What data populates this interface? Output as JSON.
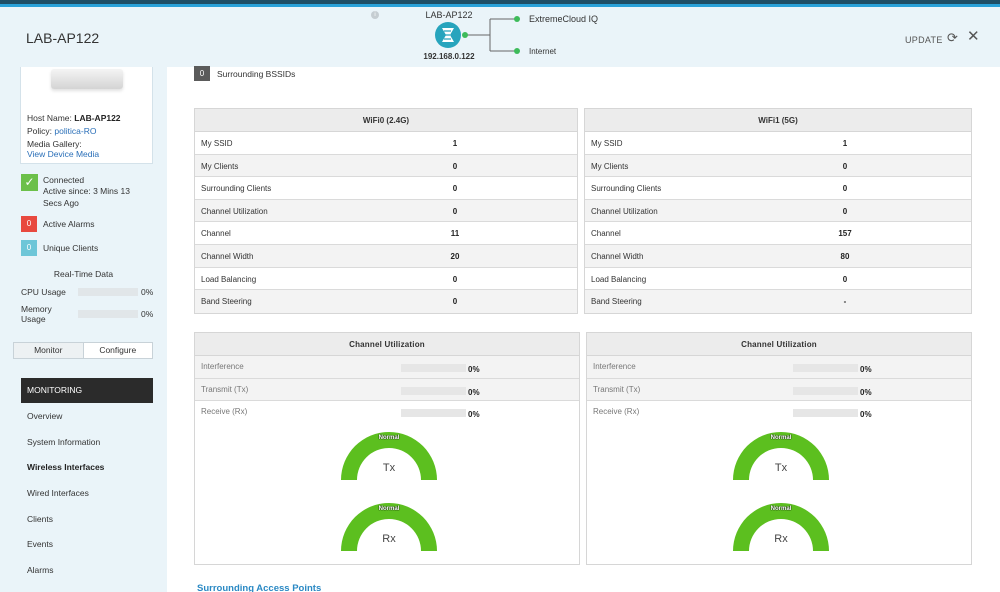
{
  "header": {
    "title": "LAB-AP122",
    "update_label": "UPDATE",
    "topology": {
      "device_name": "LAB-AP122",
      "device_ip": "192.168.0.122",
      "link1": "ExtremeCloud IQ",
      "link2": "Internet",
      "status_color": "#3dbb5a"
    }
  },
  "sidebar": {
    "host_label": "Host Name:",
    "host_value": "LAB-AP122",
    "policy_label": "Policy:",
    "policy_value": "politica-RO",
    "media_label": "Media Gallery:",
    "media_link": "View Device Media",
    "connected_title": "Connected",
    "connected_since_1": "Active since: 3 Mins 13",
    "connected_since_2": "Secs Ago",
    "alarms_count": "0",
    "alarms_label": "Active Alarms",
    "clients_count": "0",
    "clients_label": "Unique Clients",
    "realtime_title": "Real-Time Data",
    "cpu_label": "CPU Usage",
    "cpu_value": "0%",
    "mem_label_1": "Memory",
    "mem_label_2": "Usage",
    "mem_value": "0%",
    "tab_monitor": "Monitor",
    "tab_configure": "Configure",
    "section_title": "MONITORING",
    "nav": [
      "Overview",
      "System Information",
      "Wireless Interfaces",
      "Wired Interfaces",
      "Clients",
      "Events",
      "Alarms"
    ],
    "current_nav": "Wireless Interfaces"
  },
  "main": {
    "bssid_count": "0",
    "bssid_label": "Surrounding BSSIDs",
    "radios": [
      {
        "title": "WiFi0 (2.4G)",
        "rows": [
          {
            "label": "My SSID",
            "value": "1"
          },
          {
            "label": "My Clients",
            "value": "0"
          },
          {
            "label": "Surrounding Clients",
            "value": "0"
          },
          {
            "label": "Channel Utilization",
            "value": "0"
          },
          {
            "label": "Channel",
            "value": "11"
          },
          {
            "label": "Channel Width",
            "value": "20"
          },
          {
            "label": "Load Balancing",
            "value": "0"
          },
          {
            "label": "Band Steering",
            "value": "0"
          }
        ]
      },
      {
        "title": "WiFi1 (5G)",
        "rows": [
          {
            "label": "My SSID",
            "value": "1"
          },
          {
            "label": "My Clients",
            "value": "0"
          },
          {
            "label": "Surrounding Clients",
            "value": "0"
          },
          {
            "label": "Channel Utilization",
            "value": "0"
          },
          {
            "label": "Channel",
            "value": "157"
          },
          {
            "label": "Channel Width",
            "value": "80"
          },
          {
            "label": "Load Balancing",
            "value": "0"
          },
          {
            "label": "Band Steering",
            "value": "-"
          }
        ]
      }
    ],
    "channel_util": [
      {
        "title": "Channel Utilization",
        "rows": [
          {
            "label": "Interference",
            "value": "0%"
          },
          {
            "label": "Transmit (Tx)",
            "value": "0%"
          },
          {
            "label": "Receive (Rx)",
            "value": "0%"
          }
        ],
        "gauges": [
          {
            "status": "Normal",
            "label": "Tx"
          },
          {
            "status": "Normal",
            "label": "Rx"
          }
        ]
      },
      {
        "title": "Channel Utilization",
        "rows": [
          {
            "label": "Interference",
            "value": "0%"
          },
          {
            "label": "Transmit (Tx)",
            "value": "0%"
          },
          {
            "label": "Receive (Rx)",
            "value": "0%"
          }
        ],
        "gauges": [
          {
            "status": "Normal",
            "label": "Tx"
          },
          {
            "status": "Normal",
            "label": "Rx"
          }
        ]
      }
    ],
    "surrounding_link": "Surrounding Access Points",
    "gauge_color": "#5cbf1f"
  },
  "colors": {
    "connected": "#6cc04a",
    "alarm": "#e8493f",
    "clients": "#6ec6d8",
    "link": "#2a89c4"
  }
}
